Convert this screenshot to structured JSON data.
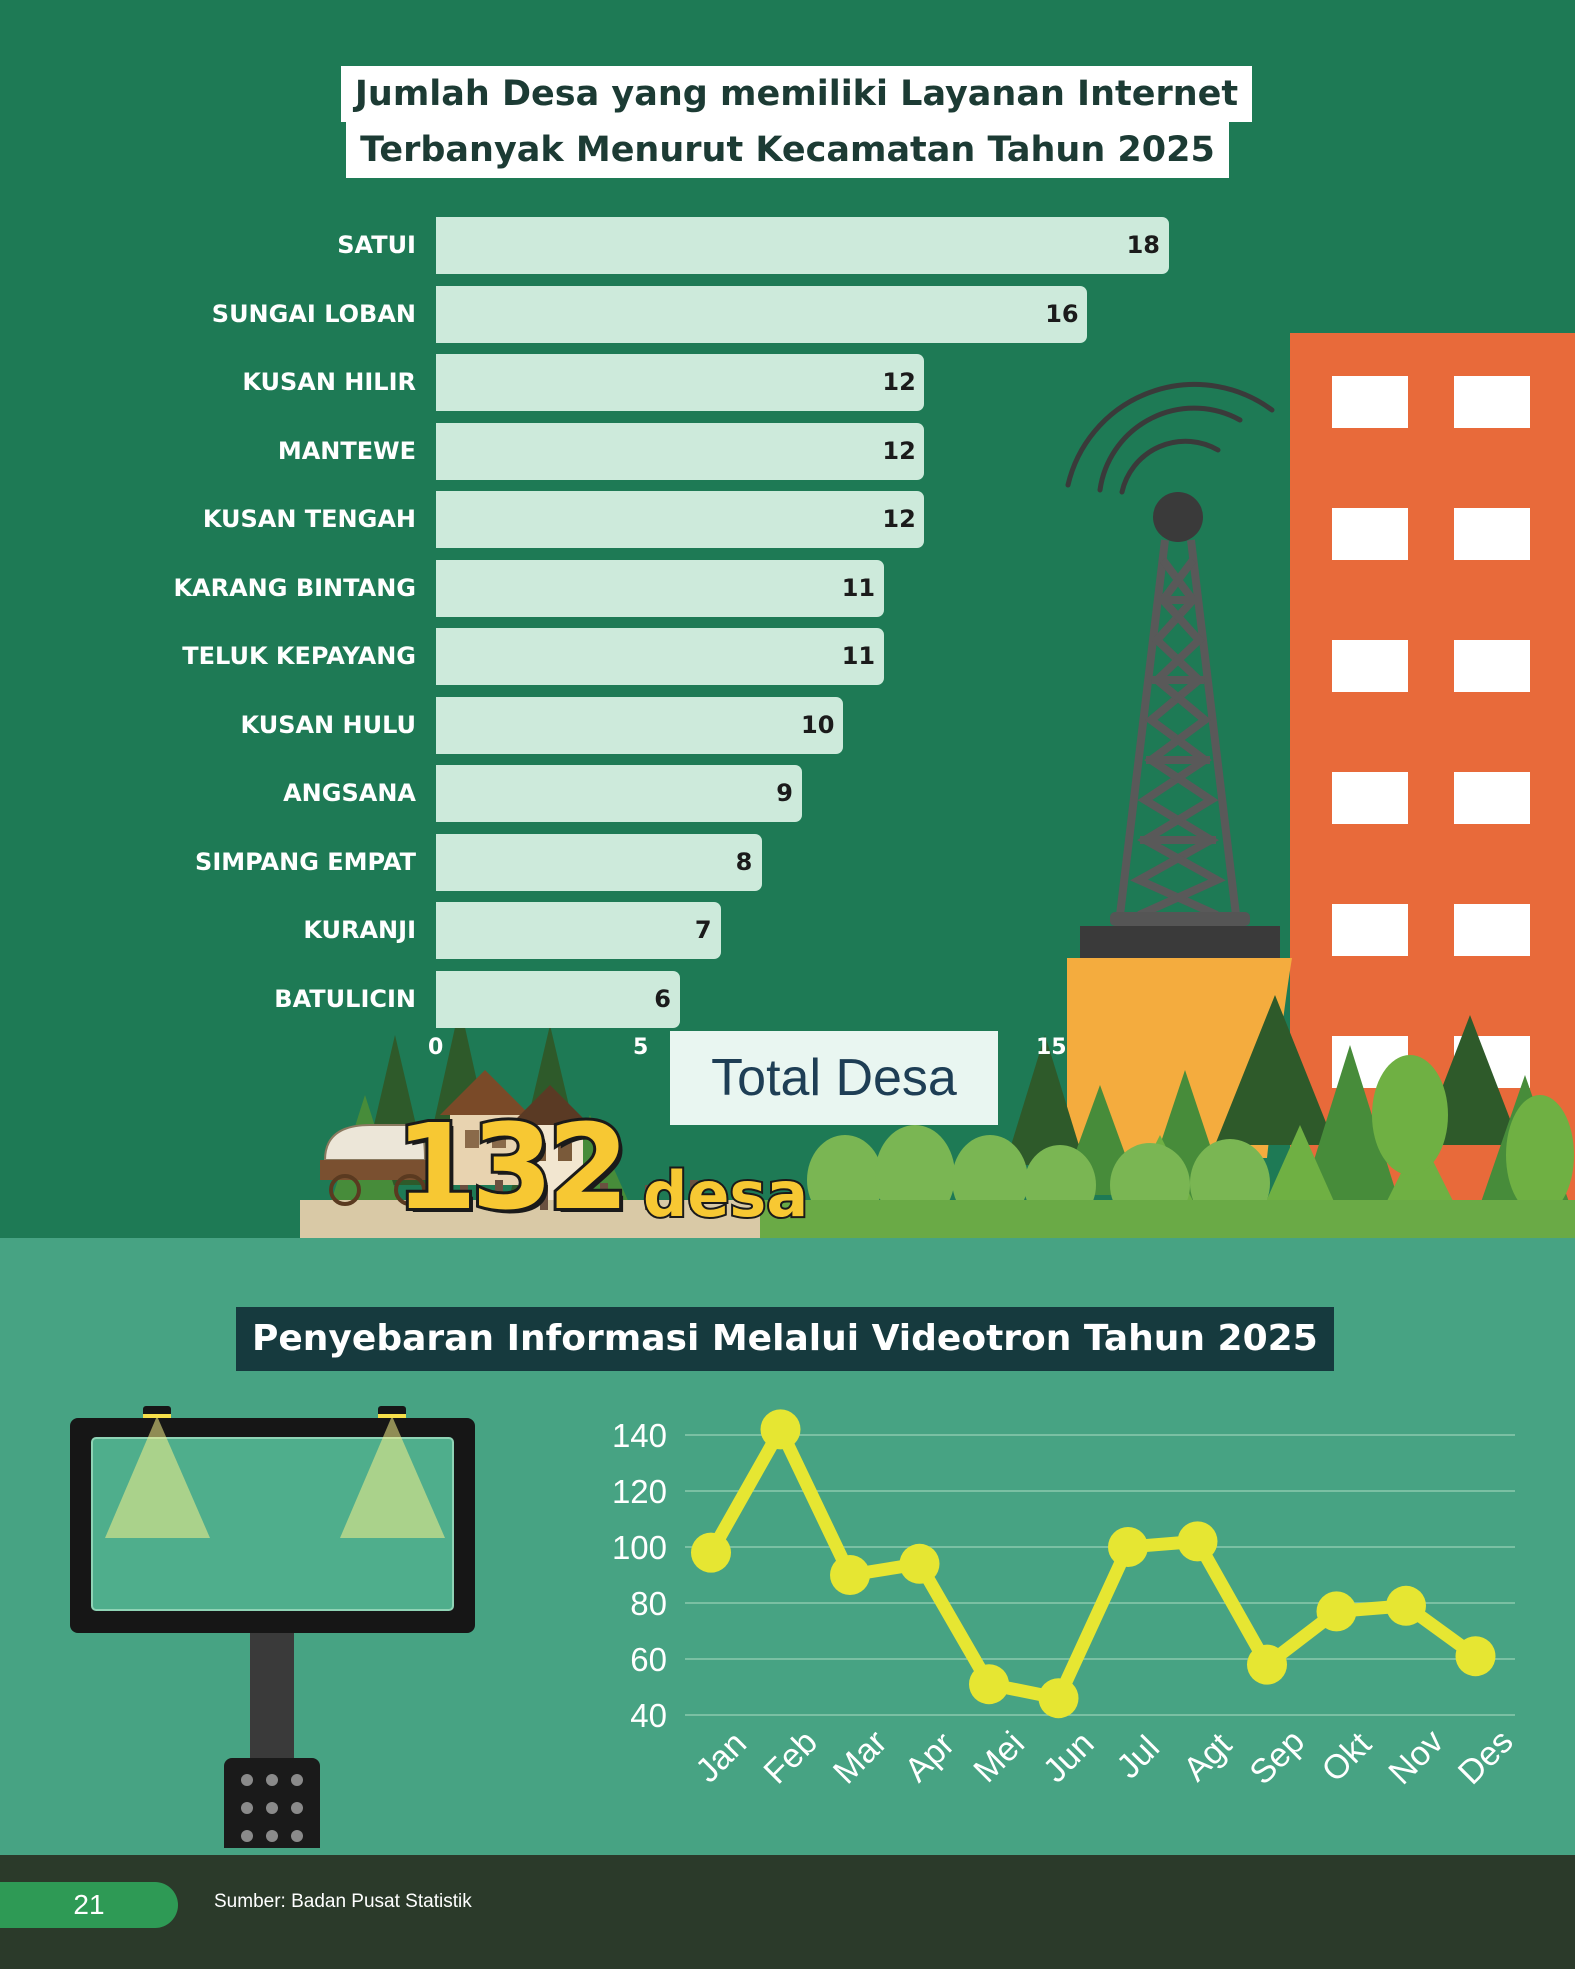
{
  "bar_chart": {
    "title_line1": "Jumlah Desa yang memiliki Layanan Internet",
    "title_line2": "Terbanyak Menurut Kecamatan Tahun 2025",
    "ticks": [
      "0",
      "5",
      "15"
    ]
  },
  "total": {
    "label": "Total Desa",
    "value": "132",
    "unit": "desa"
  },
  "line_chart": {
    "title": "Penyebaran Informasi Melalui Videotron Tahun 2025"
  },
  "footer": {
    "page": "21",
    "source": "Sumber: Badan Pusat Statistik"
  },
  "colors": {
    "top_bg": "#1e7a55",
    "bottom_bg": "#47a383",
    "bar": "#cdeadb",
    "line": "#e6e632",
    "number": "#f7c833",
    "building": "#e86a3a"
  },
  "chart_data": [
    {
      "type": "bar",
      "orientation": "horizontal",
      "title": "Jumlah Desa yang memiliki Layanan Internet Terbanyak Menurut Kecamatan Tahun 2025",
      "categories": [
        "SATUI",
        "SUNGAI LOBAN",
        "KUSAN HILIR",
        "MANTEWE",
        "KUSAN TENGAH",
        "KARANG BINTANG",
        "TELUK KEPAYANG",
        "KUSAN HULU",
        "ANGSANA",
        "SIMPANG EMPAT",
        "KURANJI",
        "BATULICIN"
      ],
      "values": [
        18,
        16,
        12,
        12,
        12,
        11,
        11,
        10,
        9,
        8,
        7,
        6
      ],
      "xlim": [
        0,
        20
      ],
      "data_labels": true,
      "grid": false
    },
    {
      "type": "line",
      "title": "Penyebaran Informasi Melalui Videotron Tahun 2025",
      "categories": [
        "Jan",
        "Feb",
        "Mar",
        "Apr",
        "Mei",
        "Jun",
        "Jul",
        "Agt",
        "Sep",
        "Okt",
        "Nov",
        "Des"
      ],
      "values": [
        98,
        142,
        90,
        94,
        51,
        46,
        100,
        102,
        58,
        77,
        79,
        61
      ],
      "ylim": [
        40,
        140
      ],
      "yticks": [
        40,
        60,
        80,
        100,
        120,
        140
      ],
      "grid": true
    }
  ]
}
